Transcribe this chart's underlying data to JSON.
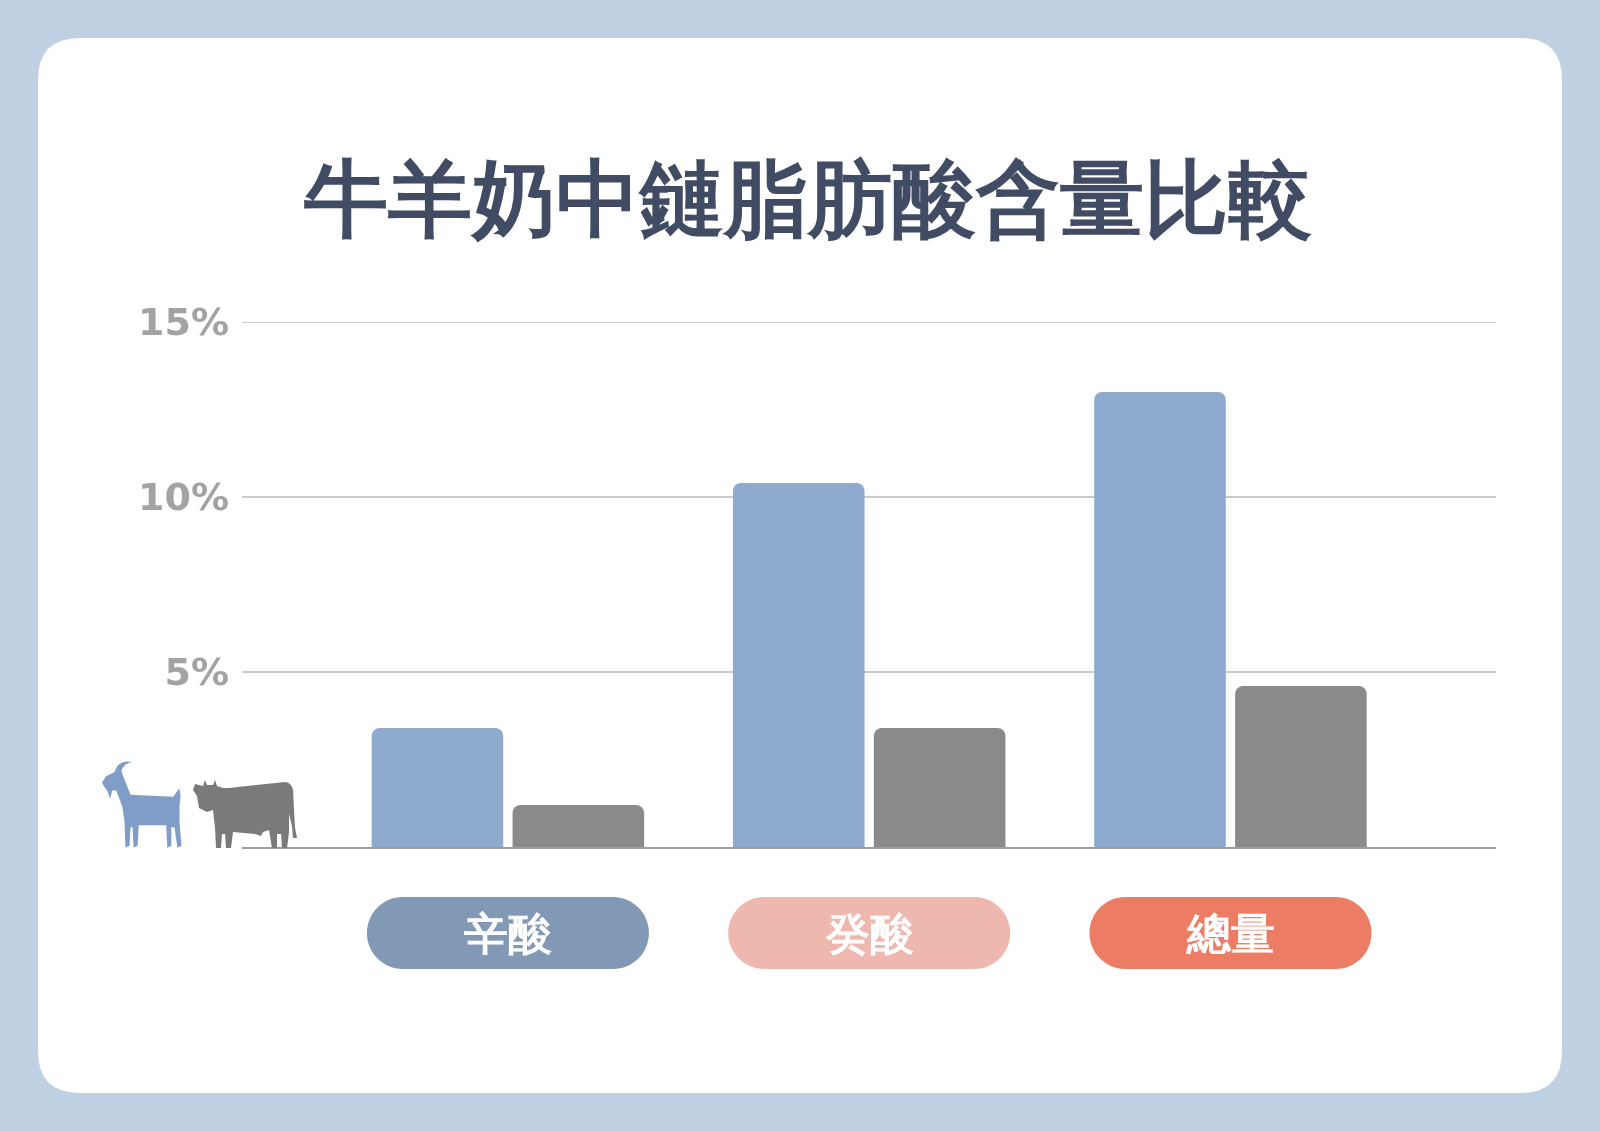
{
  "chart_data": {
    "type": "bar",
    "title": "牛羊奶中鏈脂肪酸含量比較",
    "categories": [
      "辛酸",
      "癸酸",
      "總量"
    ],
    "series": [
      {
        "color": "#8eaacf",
        "values": [
          3.4,
          10.4,
          13.0
        ]
      },
      {
        "color": "#8a8a8a",
        "values": [
          1.2,
          3.4,
          4.6
        ]
      }
    ],
    "ylim": [
      0,
      15
    ],
    "yticks": [
      {
        "value": 5,
        "label": "5%"
      },
      {
        "value": 10,
        "label": "10%"
      },
      {
        "value": 15,
        "label": "15%"
      }
    ],
    "grid": "y"
  }
}
